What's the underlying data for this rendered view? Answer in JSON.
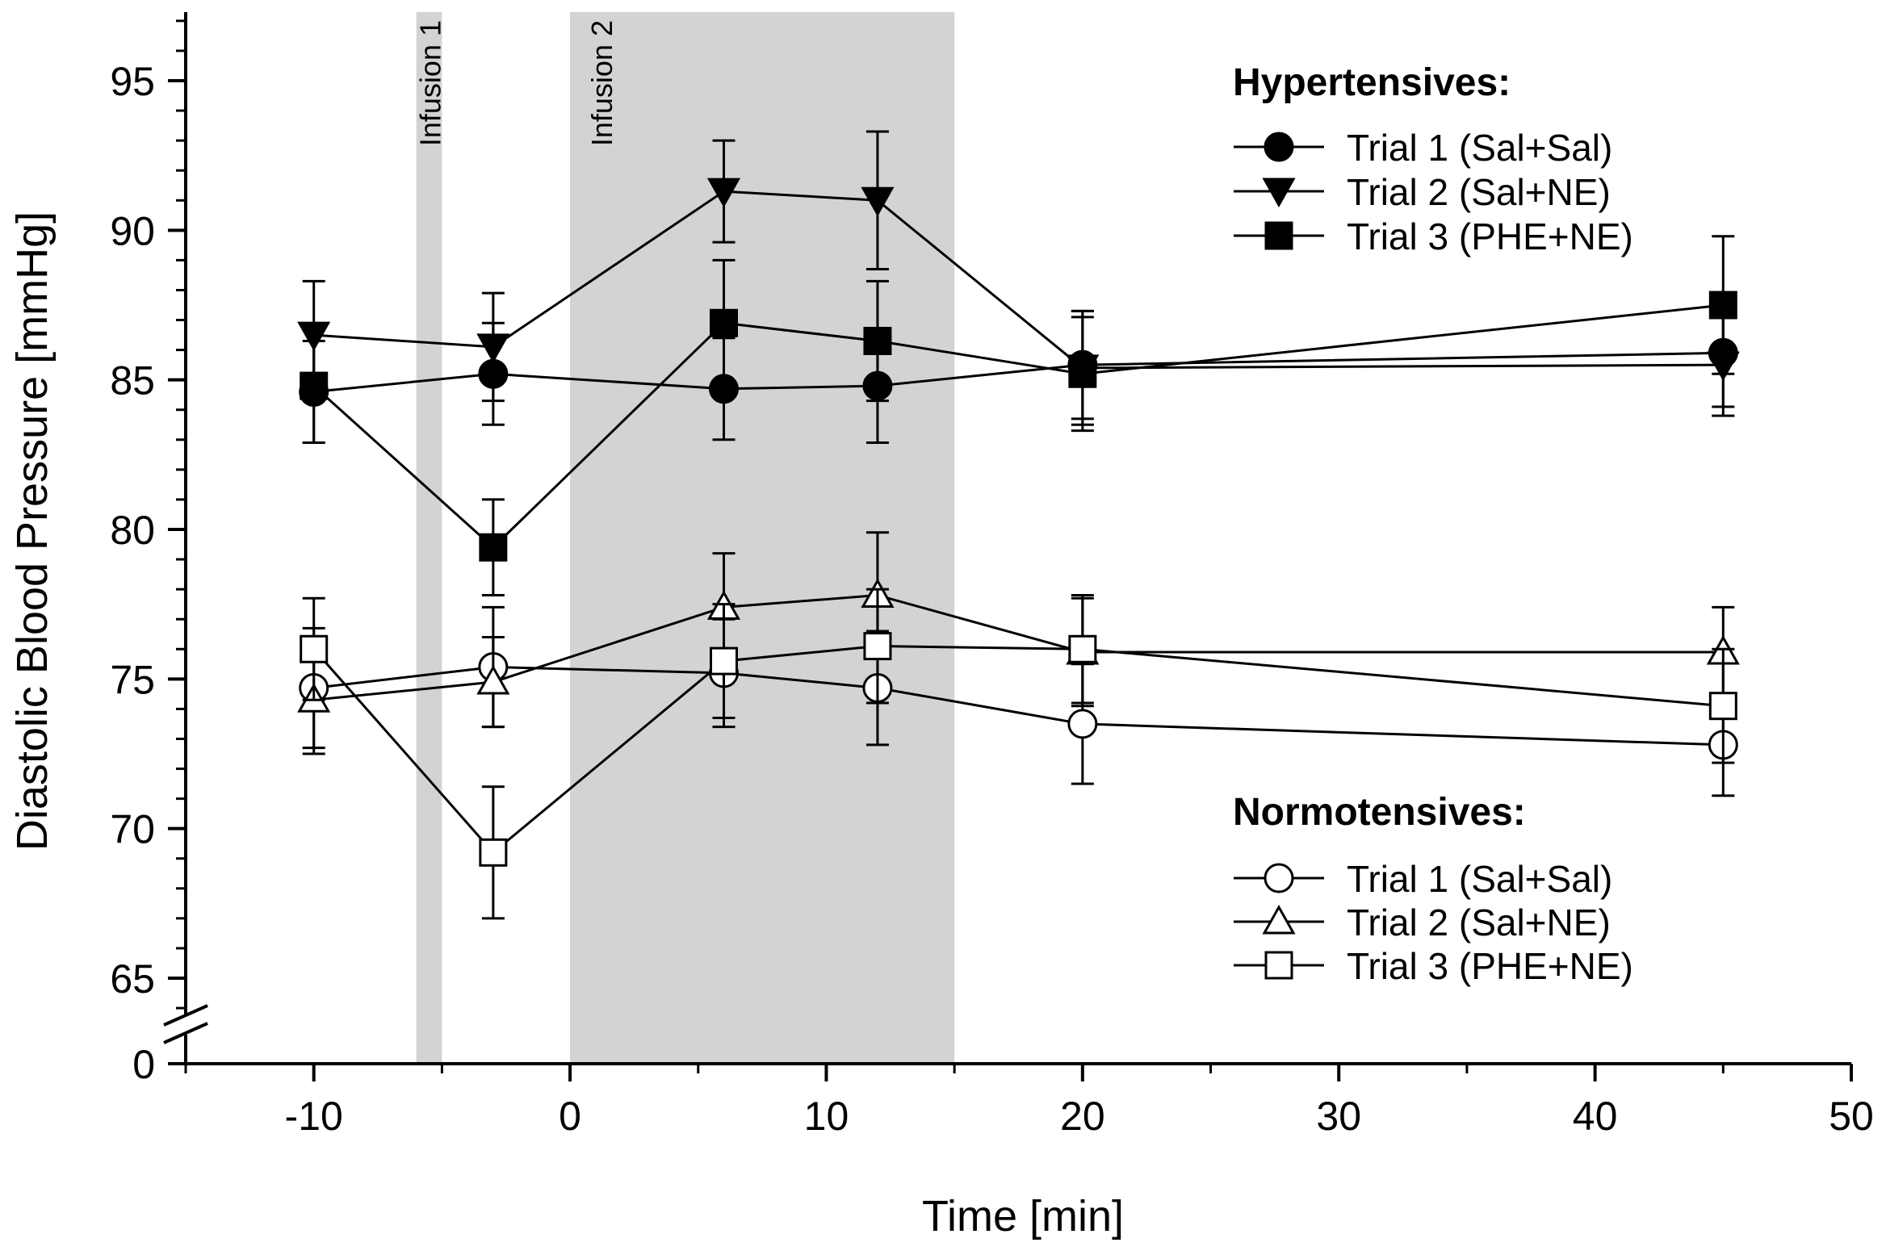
{
  "chart_data": {
    "type": "line",
    "xlabel": "Time [min]",
    "ylabel": "Diastolic Blood Pressure [mmHg]",
    "xlim": [
      -15,
      50
    ],
    "ylim": [
      65,
      97
    ],
    "x_ticks": [
      -10,
      0,
      10,
      20,
      30,
      40,
      50
    ],
    "x_tick_labels": [
      "-10",
      "0",
      "10",
      "20",
      "30",
      "40",
      "50"
    ],
    "y_ticks": [
      65,
      70,
      75,
      80,
      85,
      90,
      95
    ],
    "y_tick_labels": [
      "65",
      "70",
      "75",
      "80",
      "85",
      "90",
      "95"
    ],
    "y_break_label": "0",
    "shaded_regions": [
      {
        "label": "Infusion 1",
        "x_start": -6,
        "x_end": -5
      },
      {
        "label": "Infusion 2",
        "x_start": 0,
        "x_end": 15
      }
    ],
    "x": [
      -10,
      -3,
      6,
      12,
      20,
      45
    ],
    "groups": [
      {
        "title": "Hypertensives:",
        "series": [
          {
            "name": "Trial 1 (Sal+Sal)",
            "marker": "circle",
            "fill": "#000000",
            "values": [
              84.6,
              85.2,
              84.7,
              84.8,
              85.5,
              85.9
            ],
            "errors": [
              1.7,
              1.7,
              1.7,
              1.9,
              1.8,
              1.8
            ]
          },
          {
            "name": "Trial 2 (Sal+NE)",
            "marker": "triangle-down",
            "fill": "#000000",
            "values": [
              86.5,
              86.1,
              91.3,
              91.0,
              85.4,
              85.5
            ],
            "errors": [
              1.8,
              1.8,
              1.7,
              2.3,
              1.9,
              1.7
            ]
          },
          {
            "name": "Trial 3 (PHE+NE)",
            "marker": "square",
            "fill": "#000000",
            "values": [
              84.8,
              79.4,
              86.9,
              86.3,
              85.2,
              87.5
            ],
            "errors": [
              1.9,
              1.6,
              2.1,
              2.0,
              1.9,
              2.3
            ]
          }
        ]
      },
      {
        "title": "Normotensives:",
        "series": [
          {
            "name": "Trial 1 (Sal+Sal)",
            "marker": "circle",
            "fill": "#ffffff",
            "values": [
              74.7,
              75.4,
              75.2,
              74.7,
              73.5,
              72.8
            ],
            "errors": [
              2.0,
              2.0,
              1.8,
              1.9,
              2.0,
              1.7
            ]
          },
          {
            "name": "Trial 2 (Sal+NE)",
            "marker": "triangle-up",
            "fill": "#ffffff",
            "values": [
              74.3,
              74.9,
              77.4,
              77.8,
              75.9,
              75.9
            ],
            "errors": [
              1.8,
              1.5,
              1.8,
              2.1,
              1.8,
              1.5
            ]
          },
          {
            "name": "Trial 3 (PHE+NE)",
            "marker": "square",
            "fill": "#ffffff",
            "values": [
              76.0,
              69.2,
              75.6,
              76.1,
              76.0,
              74.1
            ],
            "errors": [
              1.7,
              2.2,
              1.9,
              1.9,
              1.8,
              1.9
            ]
          }
        ]
      }
    ]
  }
}
